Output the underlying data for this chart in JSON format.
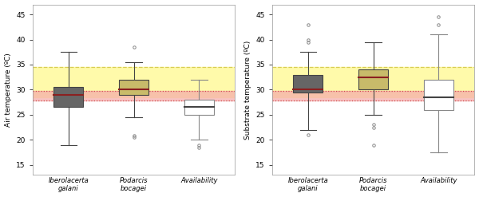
{
  "left_panel": {
    "ylabel": "Air temperature (ºC)",
    "ylim": [
      13,
      47
    ],
    "yticks": [
      15,
      20,
      25,
      30,
      35,
      40,
      45
    ],
    "boxes": [
      {
        "label": "Iberolacerta\ngalani",
        "q1": 26.5,
        "median": 29.0,
        "q3": 30.5,
        "whisker_low": 19.0,
        "whisker_high": 37.5,
        "outliers": [],
        "facecolor": "#666666",
        "mediancolor": "#8B2020",
        "linecolor": "#444444"
      },
      {
        "label": "Podarcis\nbocagei",
        "q1": 29.0,
        "median": 30.0,
        "q3": 32.0,
        "whisker_low": 24.5,
        "whisker_high": 35.5,
        "outliers": [
          20.5,
          20.8,
          38.5
        ],
        "facecolor": "#C8BB6A",
        "mediancolor": "#8B2020",
        "linecolor": "#444444"
      },
      {
        "label": "Availability",
        "q1": 25.0,
        "median": 26.5,
        "q3": 28.0,
        "whisker_low": 20.0,
        "whisker_high": 32.0,
        "outliers": [
          18.5,
          19.0
        ],
        "facecolor": "#FFFFFF",
        "mediancolor": "#444444",
        "linecolor": "#888888"
      }
    ],
    "yellow_band": [
      28.5,
      34.5
    ],
    "pink_band": [
      27.8,
      29.8
    ],
    "yellow_dashed_line": 34.5,
    "pink_dashed_upper": 29.8,
    "pink_dashed_lower": 27.8
  },
  "right_panel": {
    "ylabel": "Substrate temperature (ºC)",
    "ylim": [
      13,
      47
    ],
    "yticks": [
      15,
      20,
      25,
      30,
      35,
      40,
      45
    ],
    "boxes": [
      {
        "label": "Iberolacerta\ngalani",
        "q1": 29.5,
        "median": 30.0,
        "q3": 33.0,
        "whisker_low": 22.0,
        "whisker_high": 37.5,
        "outliers": [
          21.0,
          39.5,
          40.0,
          43.0
        ],
        "facecolor": "#666666",
        "mediancolor": "#8B2020",
        "linecolor": "#444444"
      },
      {
        "label": "Podarcis\nbocagei",
        "q1": 30.0,
        "median": 32.5,
        "q3": 34.0,
        "whisker_low": 25.0,
        "whisker_high": 39.5,
        "outliers": [
          19.0,
          22.5,
          23.0
        ],
        "facecolor": "#C8BB6A",
        "mediancolor": "#8B2020",
        "linecolor": "#444444"
      },
      {
        "label": "Availability",
        "q1": 26.0,
        "median": 28.5,
        "q3": 32.0,
        "whisker_low": 17.5,
        "whisker_high": 41.0,
        "outliers": [
          43.0,
          44.5
        ],
        "facecolor": "#FFFFFF",
        "mediancolor": "#444444",
        "linecolor": "#888888"
      }
    ],
    "yellow_band": [
      28.5,
      34.5
    ],
    "pink_band": [
      27.8,
      29.8
    ],
    "yellow_dashed_line": 34.5,
    "pink_dashed_upper": 29.8,
    "pink_dashed_lower": 27.8
  },
  "background_color": "#FFFFFF",
  "panel_bg": "#FFFFFF",
  "yellow_band_color": "#FFFAAA",
  "pink_band_color": "#F4AAAA",
  "yellow_line_color": "#D4C84A",
  "pink_line_color": "#CC4444",
  "box_width": 0.45
}
